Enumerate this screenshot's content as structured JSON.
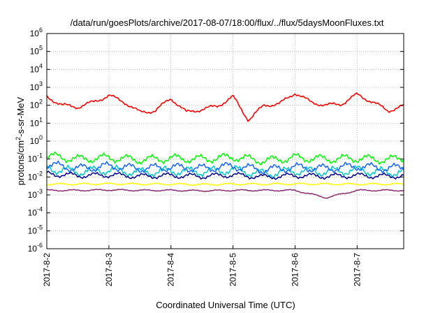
{
  "chart_data": {
    "type": "line",
    "title": "/data/run/goesPlots/archive/2017-08-07/18:00/flux/../flux/5daysMoonFluxes.txt",
    "xlabel": "Coordinated Universal Time (UTC)",
    "ylabel": "protons/cm²-s-sr-MeV",
    "ylabel_parts": {
      "pre": "protons/cm",
      "sup": "2",
      "post": "-s-sr-MeV"
    },
    "yscale": "log",
    "ylim": [
      1e-06,
      1000000.0
    ],
    "xlim": [
      "2017-8-2 00:00",
      "2017-8-7 18:00"
    ],
    "grid": true,
    "x_ticks": [
      "2017-8-2",
      "2017-8-3",
      "2017-8-4",
      "2017-8-5",
      "2017-8-6",
      "2017-8-7"
    ],
    "y_ticks": [
      {
        "base": "10",
        "exp": "-6"
      },
      {
        "base": "10",
        "exp": "-5"
      },
      {
        "base": "10",
        "exp": "-4"
      },
      {
        "base": "10",
        "exp": "-3"
      },
      {
        "base": "10",
        "exp": "-2"
      },
      {
        "base": "10",
        "exp": "-1"
      },
      {
        "base": "10",
        "exp": "0"
      },
      {
        "base": "10",
        "exp": "1"
      },
      {
        "base": "10",
        "exp": "2"
      },
      {
        "base": "10",
        "exp": "3"
      },
      {
        "base": "10",
        "exp": "4"
      },
      {
        "base": "10",
        "exp": "5"
      },
      {
        "base": "10",
        "exp": "6"
      }
    ],
    "series": [
      {
        "color": "#ff0000",
        "x": [
          "2017-8-2 00:00",
          "2017-8-2 06:00",
          "2017-8-2 12:00",
          "2017-8-2 18:00",
          "2017-8-3 00:00",
          "2017-8-3 06:00",
          "2017-8-3 12:00",
          "2017-8-3 18:00",
          "2017-8-4 00:00",
          "2017-8-4 06:00",
          "2017-8-4 12:00",
          "2017-8-4 18:00",
          "2017-8-5 00:00",
          "2017-8-5 06:00",
          "2017-8-5 12:00",
          "2017-8-5 18:00",
          "2017-8-6 00:00",
          "2017-8-6 06:00",
          "2017-8-6 12:00",
          "2017-8-6 18:00",
          "2017-8-7 00:00",
          "2017-8-7 06:00",
          "2017-8-7 12:00",
          "2017-8-7 18:00"
        ],
        "y": [
          300,
          100,
          80,
          150,
          350,
          150,
          40,
          50,
          250,
          40,
          60,
          90,
          300,
          15,
          100,
          120,
          500,
          150,
          100,
          120,
          400,
          150,
          50,
          90
        ]
      },
      {
        "color": "#00ff00",
        "x": [
          "2017-8-2 00:00",
          "2017-8-2 12:00",
          "2017-8-3 00:00",
          "2017-8-3 12:00",
          "2017-8-4 00:00",
          "2017-8-4 12:00",
          "2017-8-5 00:00",
          "2017-8-5 12:00",
          "2017-8-6 00:00",
          "2017-8-6 12:00",
          "2017-8-7 00:00",
          "2017-8-7 12:00",
          "2017-8-7 18:00"
        ],
        "y": [
          0.15,
          0.1,
          0.12,
          0.09,
          0.11,
          0.1,
          0.13,
          0.08,
          0.12,
          0.1,
          0.11,
          0.09,
          0.12
        ]
      },
      {
        "color": "#00c8c8",
        "x": [
          "2017-8-2 00:00",
          "2017-8-2 12:00",
          "2017-8-3 00:00",
          "2017-8-3 12:00",
          "2017-8-4 00:00",
          "2017-8-4 12:00",
          "2017-8-5 00:00",
          "2017-8-5 12:00",
          "2017-8-6 00:00",
          "2017-8-6 12:00",
          "2017-8-7 00:00",
          "2017-8-7 12:00",
          "2017-8-7 18:00"
        ],
        "y": [
          0.03,
          0.02,
          0.025,
          0.018,
          0.022,
          0.02,
          0.025,
          0.015,
          0.022,
          0.02,
          0.024,
          0.018,
          0.02
        ]
      },
      {
        "color": "#1464ff",
        "x": [
          "2017-8-2 00:00",
          "2017-8-2 12:00",
          "2017-8-3 00:00",
          "2017-8-3 12:00",
          "2017-8-4 00:00",
          "2017-8-4 12:00",
          "2017-8-5 00:00",
          "2017-8-5 12:00",
          "2017-8-6 00:00",
          "2017-8-6 12:00",
          "2017-8-7 00:00",
          "2017-8-7 12:00",
          "2017-8-7 18:00"
        ],
        "y": [
          0.05,
          0.03,
          0.04,
          0.03,
          0.035,
          0.03,
          0.04,
          0.025,
          0.035,
          0.03,
          0.04,
          0.03,
          0.035
        ]
      },
      {
        "color": "#00008b",
        "x": [
          "2017-8-2 00:00",
          "2017-8-2 12:00",
          "2017-8-3 00:00",
          "2017-8-3 12:00",
          "2017-8-4 00:00",
          "2017-8-4 12:00",
          "2017-8-5 00:00",
          "2017-8-5 12:00",
          "2017-8-6 00:00",
          "2017-8-6 12:00",
          "2017-8-7 00:00",
          "2017-8-7 12:00",
          "2017-8-7 18:00"
        ],
        "y": [
          0.015,
          0.012,
          0.013,
          0.011,
          0.012,
          0.011,
          0.013,
          0.01,
          0.012,
          0.011,
          0.012,
          0.011,
          0.012
        ]
      },
      {
        "color": "#ffff00",
        "x": [
          "2017-8-2 00:00",
          "2017-8-2 12:00",
          "2017-8-3 00:00",
          "2017-8-3 12:00",
          "2017-8-4 00:00",
          "2017-8-4 12:00",
          "2017-8-5 00:00",
          "2017-8-5 12:00",
          "2017-8-6 00:00",
          "2017-8-6 12:00",
          "2017-8-7 00:00",
          "2017-8-7 12:00",
          "2017-8-7 18:00"
        ],
        "y": [
          0.004,
          0.004,
          0.0042,
          0.004,
          0.004,
          0.0038,
          0.004,
          0.004,
          0.0041,
          0.004,
          0.004,
          0.004,
          0.004
        ]
      },
      {
        "color": "#8b2a6e",
        "x": [
          "2017-8-2 00:00",
          "2017-8-2 12:00",
          "2017-8-3 00:00",
          "2017-8-3 12:00",
          "2017-8-4 00:00",
          "2017-8-4 12:00",
          "2017-8-5 00:00",
          "2017-8-5 12:00",
          "2017-8-6 00:00",
          "2017-8-6 12:00",
          "2017-8-7 00:00",
          "2017-8-7 12:00",
          "2017-8-7 18:00"
        ],
        "y": [
          0.0018,
          0.0018,
          0.0019,
          0.0018,
          0.0018,
          0.0017,
          0.0018,
          0.0018,
          0.0018,
          0.0007,
          0.0018,
          0.0018,
          0.0018
        ]
      }
    ]
  }
}
